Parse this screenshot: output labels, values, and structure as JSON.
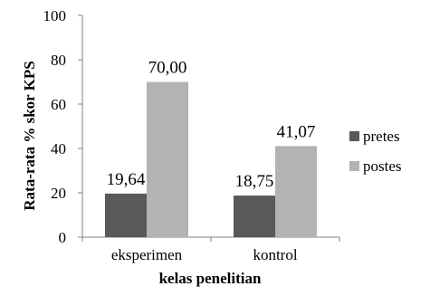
{
  "chart_data": {
    "type": "bar",
    "title": "",
    "xlabel": "kelas penelitian",
    "ylabel": "Rata-rata % skor KPS",
    "ylim": [
      0,
      100
    ],
    "yticks": [
      0,
      20,
      40,
      60,
      80,
      100
    ],
    "grid": false,
    "legend_position": "right",
    "categories": [
      "eksperimen",
      "kontrol"
    ],
    "series": [
      {
        "name": "pretes",
        "color": "#595959",
        "values": [
          19.64,
          18.75
        ],
        "labels": [
          "19,64",
          "18,75"
        ]
      },
      {
        "name": "postes",
        "color": "#b3b3b3",
        "values": [
          70.0,
          41.07
        ],
        "labels": [
          "70,00",
          "41,07"
        ]
      }
    ]
  }
}
